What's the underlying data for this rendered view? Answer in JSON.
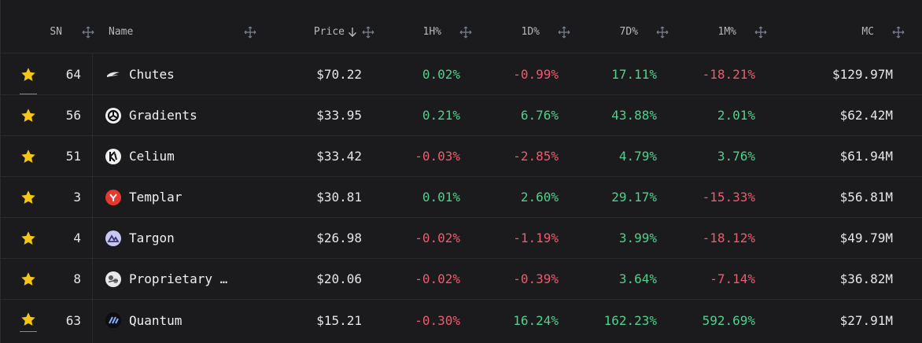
{
  "header": {
    "sn": "SN",
    "name": "Name",
    "price": "Price",
    "h1": "1H%",
    "d1": "1D%",
    "d7": "7D%",
    "m1": "1M%",
    "mc": "MC"
  },
  "colors": {
    "positive": "#4fd08b",
    "negative": "#ef5a6f",
    "star": "#f5c518",
    "background": "#1b1b1d"
  },
  "rows": [
    {
      "sn": "64",
      "name": "Chutes",
      "price": "$70.22",
      "h1": "0.02%",
      "d1": "-0.99%",
      "d7": "17.11%",
      "m1": "-18.21%",
      "mc": "$129.97M",
      "icon": "chutes-logo-icon"
    },
    {
      "sn": "56",
      "name": "Gradients",
      "price": "$33.95",
      "h1": "0.21%",
      "d1": "6.76%",
      "d7": "43.88%",
      "m1": "2.01%",
      "mc": "$62.42M",
      "icon": "gradients-logo-icon"
    },
    {
      "sn": "51",
      "name": "Celium",
      "price": "$33.42",
      "h1": "-0.03%",
      "d1": "-2.85%",
      "d7": "4.79%",
      "m1": "3.76%",
      "mc": "$61.94M",
      "icon": "celium-logo-icon"
    },
    {
      "sn": "3",
      "name": "Templar",
      "price": "$30.81",
      "h1": "0.01%",
      "d1": "2.60%",
      "d7": "29.17%",
      "m1": "-15.33%",
      "mc": "$56.81M",
      "icon": "templar-logo-icon"
    },
    {
      "sn": "4",
      "name": "Targon",
      "price": "$26.98",
      "h1": "-0.02%",
      "d1": "-1.19%",
      "d7": "3.99%",
      "m1": "-18.12%",
      "mc": "$49.79M",
      "icon": "targon-logo-icon"
    },
    {
      "sn": "8",
      "name": "Proprietary …",
      "price": "$20.06",
      "h1": "-0.02%",
      "d1": "-0.39%",
      "d7": "3.64%",
      "m1": "-7.14%",
      "mc": "$36.82M",
      "icon": "proprietary-logo-icon"
    },
    {
      "sn": "63",
      "name": "Quantum",
      "price": "$15.21",
      "h1": "-0.30%",
      "d1": "16.24%",
      "d7": "162.23%",
      "m1": "592.69%",
      "mc": "$27.91M",
      "icon": "quantum-logo-icon"
    }
  ]
}
